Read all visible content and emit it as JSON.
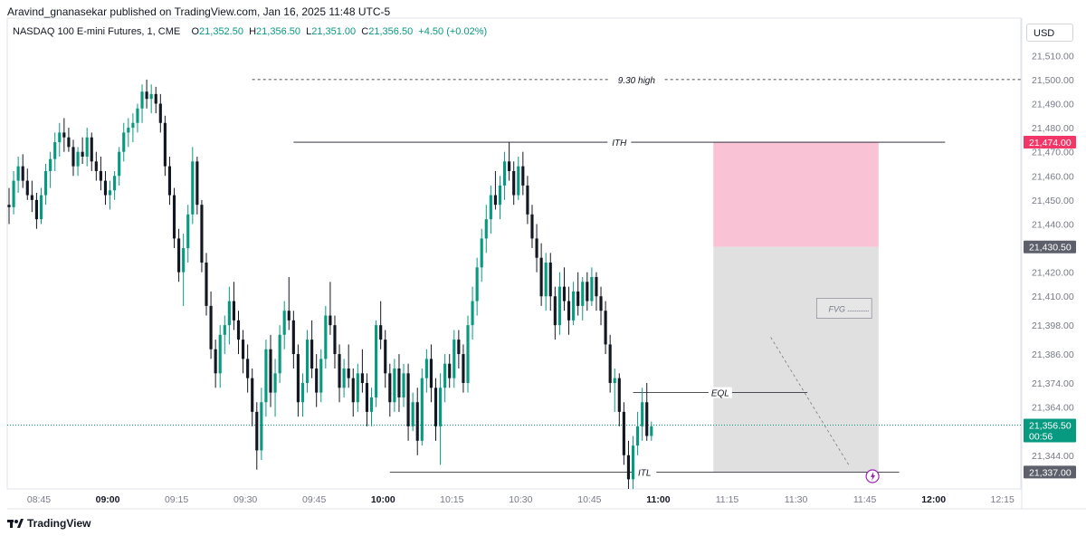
{
  "header": {
    "published": "Aravind_gnanasekar published on TradingView.com, Jan 16, 2025 11:48 UTC-5",
    "symbol": "NASDAQ 100 E-mini Futures, 1, CME",
    "ohlc": {
      "o_label": "O",
      "o": "21,352.50",
      "h_label": "H",
      "h": "21,356.50",
      "l_label": "L",
      "l": "21,351.00",
      "c_label": "C",
      "c": "21,356.50",
      "change": "+4.50 (+0.02%)"
    },
    "currency": "USD"
  },
  "footer": {
    "brand": "TradingView"
  },
  "colors": {
    "up": "#089981",
    "down": "#131722",
    "premium_zone": "#f9c2d5",
    "range_zone": "#d6d6d6",
    "price_badge": "#089981",
    "top_badge": "#f23668",
    "level_badge": "#5d606b"
  },
  "chart_data": {
    "type": "candlestick",
    "title": "",
    "xlabel": "",
    "ylabel": "",
    "ylim": [
      21330,
      21515
    ],
    "x_ticks": [
      "08:45",
      "09:00",
      "09:15",
      "09:30",
      "09:45",
      "10:00",
      "10:15",
      "10:30",
      "10:45",
      "11:00",
      "11:15",
      "11:30",
      "11:45",
      "12:00",
      "12:15"
    ],
    "x_ticks_bold": [
      "09:00",
      "10:00",
      "11:00",
      "12:00"
    ],
    "y_ticks": [
      "21,510.00",
      "21,500.00",
      "21,490.00",
      "21,480.00",
      "21,470.00",
      "21,460.00",
      "21,450.00",
      "21,440.00",
      "21,420.00",
      "21,410.00",
      "21,398.00",
      "21,386.00",
      "21,374.00",
      "21,364.00",
      "21,344.00"
    ],
    "y_badges": [
      {
        "label": "21,474.00",
        "kind": "top"
      },
      {
        "label": "21,430.50",
        "kind": "level"
      },
      {
        "label": "21,356.50",
        "sub": "00:56",
        "kind": "price"
      },
      {
        "label": "21,337.00",
        "kind": "level"
      }
    ],
    "annotations": [
      {
        "text": "9.30 high",
        "price": 21500
      },
      {
        "text": "ITH",
        "price": 21474
      },
      {
        "text": "EQL",
        "price": 21370
      },
      {
        "text": "ITL",
        "price": 21337
      },
      {
        "text": "FVG",
        "price": 21405
      }
    ],
    "zones": [
      {
        "name": "premium",
        "t_from": "11:12",
        "t_to": "11:48",
        "price_from": 21430.5,
        "price_to": 21474
      },
      {
        "name": "range",
        "t_from": "11:12",
        "t_to": "11:48",
        "price_from": 21337,
        "price_to": 21430.5
      }
    ],
    "current_price": 21356.5,
    "candles": [
      [
        21448,
        21455,
        21440,
        21447
      ],
      [
        21447,
        21462,
        21444,
        21458
      ],
      [
        21458,
        21468,
        21453,
        21464
      ],
      [
        21464,
        21469,
        21455,
        21458
      ],
      [
        21458,
        21463,
        21450,
        21452
      ],
      [
        21452,
        21458,
        21445,
        21450
      ],
      [
        21450,
        21453,
        21438,
        21442
      ],
      [
        21442,
        21455,
        21440,
        21452
      ],
      [
        21452,
        21465,
        21448,
        21462
      ],
      [
        21462,
        21470,
        21455,
        21467
      ],
      [
        21467,
        21478,
        21462,
        21474
      ],
      [
        21474,
        21482,
        21468,
        21478
      ],
      [
        21478,
        21484,
        21470,
        21476
      ],
      [
        21476,
        21480,
        21470,
        21472
      ],
      [
        21472,
        21475,
        21460,
        21464
      ],
      [
        21464,
        21472,
        21460,
        21470
      ],
      [
        21470,
        21476,
        21465,
        21468
      ],
      [
        21468,
        21480,
        21464,
        21476
      ],
      [
        21476,
        21478,
        21462,
        21466
      ],
      [
        21466,
        21470,
        21458,
        21462
      ],
      [
        21462,
        21468,
        21454,
        21458
      ],
      [
        21458,
        21462,
        21448,
        21452
      ],
      [
        21452,
        21458,
        21446,
        21454
      ],
      [
        21454,
        21462,
        21450,
        21460
      ],
      [
        21460,
        21472,
        21456,
        21470
      ],
      [
        21470,
        21482,
        21466,
        21478
      ],
      [
        21478,
        21484,
        21472,
        21480
      ],
      [
        21480,
        21486,
        21474,
        21482
      ],
      [
        21482,
        21490,
        21478,
        21488
      ],
      [
        21488,
        21498,
        21482,
        21495
      ],
      [
        21495,
        21500,
        21488,
        21492
      ],
      [
        21492,
        21498,
        21486,
        21494
      ],
      [
        21494,
        21497,
        21486,
        21490
      ],
      [
        21490,
        21494,
        21478,
        21482
      ],
      [
        21482,
        21485,
        21460,
        21464
      ],
      [
        21464,
        21468,
        21448,
        21452
      ],
      [
        21452,
        21455,
        21430,
        21434
      ],
      [
        21434,
        21438,
        21416,
        21420
      ],
      [
        21420,
        21436,
        21406,
        21430
      ],
      [
        21430,
        21448,
        21424,
        21444
      ],
      [
        21444,
        21472,
        21440,
        21466
      ],
      [
        21466,
        21468,
        21444,
        21448
      ],
      [
        21448,
        21450,
        21420,
        21424
      ],
      [
        21424,
        21428,
        21402,
        21406
      ],
      [
        21406,
        21412,
        21384,
        21388
      ],
      [
        21388,
        21392,
        21372,
        21378
      ],
      [
        21378,
        21398,
        21372,
        21394
      ],
      [
        21394,
        21402,
        21386,
        21398
      ],
      [
        21398,
        21414,
        21390,
        21408
      ],
      [
        21408,
        21416,
        21396,
        21400
      ],
      [
        21400,
        21404,
        21386,
        21392
      ],
      [
        21392,
        21396,
        21378,
        21384
      ],
      [
        21384,
        21390,
        21370,
        21376
      ],
      [
        21376,
        21380,
        21356,
        21362
      ],
      [
        21362,
        21366,
        21338,
        21346
      ],
      [
        21346,
        21372,
        21342,
        21366
      ],
      [
        21366,
        21392,
        21360,
        21388
      ],
      [
        21388,
        21394,
        21364,
        21370
      ],
      [
        21370,
        21384,
        21360,
        21378
      ],
      [
        21378,
        21398,
        21374,
        21394
      ],
      [
        21394,
        21408,
        21388,
        21404
      ],
      [
        21404,
        21418,
        21396,
        21400
      ],
      [
        21400,
        21404,
        21380,
        21386
      ],
      [
        21386,
        21390,
        21360,
        21366
      ],
      [
        21366,
        21378,
        21360,
        21374
      ],
      [
        21374,
        21396,
        21370,
        21392
      ],
      [
        21392,
        21400,
        21376,
        21380
      ],
      [
        21380,
        21386,
        21364,
        21370
      ],
      [
        21370,
        21388,
        21366,
        21384
      ],
      [
        21384,
        21406,
        21380,
        21402
      ],
      [
        21402,
        21416,
        21394,
        21398
      ],
      [
        21398,
        21402,
        21380,
        21386
      ],
      [
        21386,
        21390,
        21366,
        21372
      ],
      [
        21372,
        21384,
        21368,
        21380
      ],
      [
        21380,
        21390,
        21372,
        21376
      ],
      [
        21376,
        21380,
        21360,
        21366
      ],
      [
        21366,
        21382,
        21362,
        21378
      ],
      [
        21378,
        21388,
        21370,
        21374
      ],
      [
        21374,
        21378,
        21356,
        21362
      ],
      [
        21362,
        21372,
        21356,
        21368
      ],
      [
        21368,
        21400,
        21364,
        21398
      ],
      [
        21398,
        21408,
        21388,
        21392
      ],
      [
        21392,
        21396,
        21372,
        21378
      ],
      [
        21378,
        21382,
        21360,
        21366
      ],
      [
        21366,
        21384,
        21362,
        21380
      ],
      [
        21380,
        21386,
        21362,
        21368
      ],
      [
        21368,
        21382,
        21364,
        21378
      ],
      [
        21378,
        21382,
        21350,
        21356
      ],
      [
        21356,
        21370,
        21354,
        21366
      ],
      [
        21366,
        21372,
        21344,
        21350
      ],
      [
        21350,
        21380,
        21348,
        21376
      ],
      [
        21376,
        21388,
        21370,
        21384
      ],
      [
        21384,
        21390,
        21366,
        21372
      ],
      [
        21372,
        21376,
        21350,
        21356
      ],
      [
        21356,
        21378,
        21340,
        21372
      ],
      [
        21372,
        21386,
        21366,
        21382
      ],
      [
        21382,
        21386,
        21372,
        21376
      ],
      [
        21376,
        21396,
        21372,
        21392
      ],
      [
        21392,
        21396,
        21380,
        21386
      ],
      [
        21386,
        21390,
        21370,
        21374
      ],
      [
        21374,
        21402,
        21370,
        21398
      ],
      [
        21398,
        21414,
        21392,
        21408
      ],
      [
        21408,
        21426,
        21402,
        21422
      ],
      [
        21422,
        21438,
        21416,
        21434
      ],
      [
        21434,
        21448,
        21428,
        21442
      ],
      [
        21442,
        21456,
        21436,
        21452
      ],
      [
        21452,
        21462,
        21446,
        21448
      ],
      [
        21448,
        21460,
        21442,
        21456
      ],
      [
        21456,
        21470,
        21450,
        21466
      ],
      [
        21466,
        21474,
        21458,
        21462
      ],
      [
        21462,
        21466,
        21448,
        21452
      ],
      [
        21452,
        21468,
        21450,
        21464
      ],
      [
        21464,
        21470,
        21452,
        21456
      ],
      [
        21456,
        21460,
        21440,
        21444
      ],
      [
        21444,
        21448,
        21430,
        21434
      ],
      [
        21434,
        21440,
        21420,
        21426
      ],
      [
        21426,
        21432,
        21406,
        21410
      ],
      [
        21410,
        21428,
        21404,
        21424
      ],
      [
        21424,
        21428,
        21404,
        21410
      ],
      [
        21410,
        21414,
        21392,
        21398
      ],
      [
        21398,
        21420,
        21394,
        21414
      ],
      [
        21414,
        21422,
        21404,
        21408
      ],
      [
        21408,
        21414,
        21394,
        21400
      ],
      [
        21400,
        21416,
        21398,
        21412
      ],
      [
        21412,
        21420,
        21402,
        21406
      ],
      [
        21406,
        21418,
        21400,
        21416
      ],
      [
        21416,
        21420,
        21404,
        21408
      ],
      [
        21408,
        21422,
        21406,
        21418
      ],
      [
        21418,
        21420,
        21404,
        21410
      ],
      [
        21410,
        21414,
        21398,
        21404
      ],
      [
        21404,
        21408,
        21386,
        21390
      ],
      [
        21390,
        21394,
        21370,
        21374
      ],
      [
        21374,
        21380,
        21362,
        21376
      ],
      [
        21376,
        21378,
        21356,
        21362
      ],
      [
        21362,
        21366,
        21340,
        21344
      ],
      [
        21344,
        21350,
        21330,
        21334
      ],
      [
        21334,
        21352,
        21330,
        21348
      ],
      [
        21348,
        21362,
        21344,
        21356
      ],
      [
        21356,
        21372,
        21350,
        21366
      ],
      [
        21366,
        21374,
        21350,
        21352
      ],
      [
        21352,
        21358,
        21350,
        21356
      ]
    ]
  }
}
